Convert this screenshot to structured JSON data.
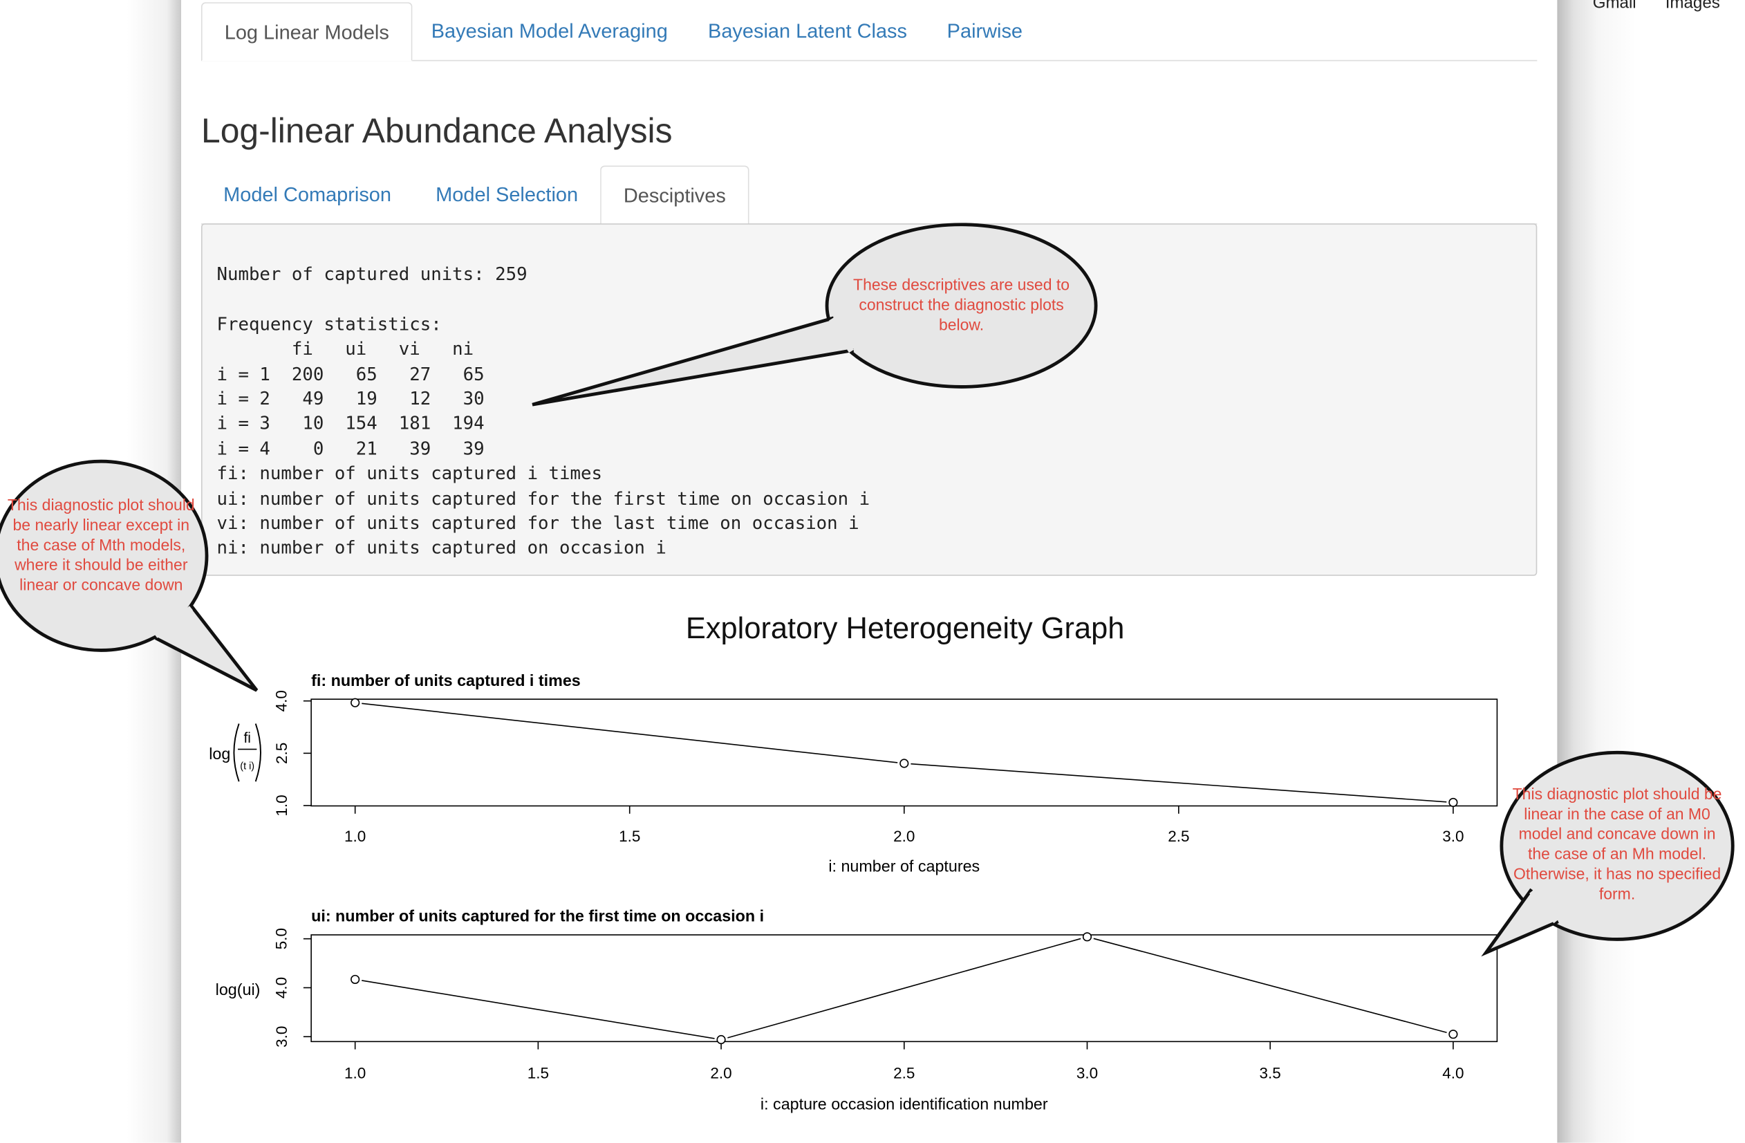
{
  "top_links": [
    "Gmail",
    "Images"
  ],
  "tabs": [
    {
      "label": "Log Linear Models",
      "active": true
    },
    {
      "label": "Bayesian Model Averaging",
      "active": false
    },
    {
      "label": "Bayesian Latent Class",
      "active": false
    },
    {
      "label": "Pairwise",
      "active": false
    }
  ],
  "page_title": "Log-linear Abundance Analysis",
  "subtabs": [
    {
      "label": "Model Comaprison",
      "active": false
    },
    {
      "label": "Model Selection",
      "active": false
    },
    {
      "label": "Desciptives",
      "active": true
    }
  ],
  "output": {
    "lines": [
      "Number of captured units: 259",
      "",
      "Frequency statistics:",
      "       fi   ui   vi   ni",
      "i = 1  200   65   27   65",
      "i = 2   49   19   12   30",
      "i = 3   10  154  181  194",
      "i = 4    0   21   39   39",
      "fi: number of units captured i times",
      "ui: number of units captured for the first time on occasion i",
      "vi: number of units captured for the last time on occasion i",
      "ni: number of units captured on occasion i"
    ]
  },
  "callouts": {
    "top": "These descriptives are used to construct the diagnostic plots below.",
    "left": "This diagnostic plot should be nearly linear except in the case of Mth models, where it should be either linear or concave down",
    "right": "This diagnostic plot should be linear in the case of an M0 model and concave down in the case of an Mh model. Otherwise, it has no specified form."
  },
  "figure_title": "Exploratory Heterogeneity Graph",
  "chart_data": [
    {
      "type": "line",
      "title": "fi: number of units captured i times",
      "xlabel": "i: number of captures",
      "ylabel": "log(fi / C(t,i))",
      "ylabel_parts": {
        "prefix": "log",
        "numerator": "fi",
        "denominator": "(t i)"
      },
      "x": [
        1,
        2,
        3
      ],
      "y": [
        3.95,
        2.21,
        1.09
      ],
      "xlim": [
        0.92,
        3.08
      ],
      "ylim": [
        0.99,
        4.05
      ],
      "xticks": [
        "1.0",
        "1.5",
        "2.0",
        "2.5",
        "3.0"
      ],
      "xtick_values": [
        1.0,
        1.5,
        2.0,
        2.5,
        3.0
      ],
      "yticks": [
        "1.0",
        "2.5",
        "4.0"
      ],
      "ytick_values": [
        1.0,
        2.5,
        4.0
      ],
      "markers": "open-circle"
    },
    {
      "type": "line",
      "title": "ui: number of units captured for the first time on occasion i",
      "xlabel": "i: capture occasion identification number",
      "ylabel": "log(ui)",
      "x": [
        1,
        2,
        3,
        4
      ],
      "y": [
        4.17,
        2.94,
        5.04,
        3.05
      ],
      "xlim": [
        0.88,
        4.12
      ],
      "ylim": [
        2.9,
        5.08
      ],
      "xticks": [
        "1.0",
        "1.5",
        "2.0",
        "2.5",
        "3.0",
        "3.5",
        "4.0"
      ],
      "xtick_values": [
        1.0,
        1.5,
        2.0,
        2.5,
        3.0,
        3.5,
        4.0
      ],
      "yticks": [
        "3.0",
        "4.0",
        "5.0"
      ],
      "ytick_values": [
        3.0,
        4.0,
        5.0
      ],
      "markers": "open-circle"
    }
  ]
}
